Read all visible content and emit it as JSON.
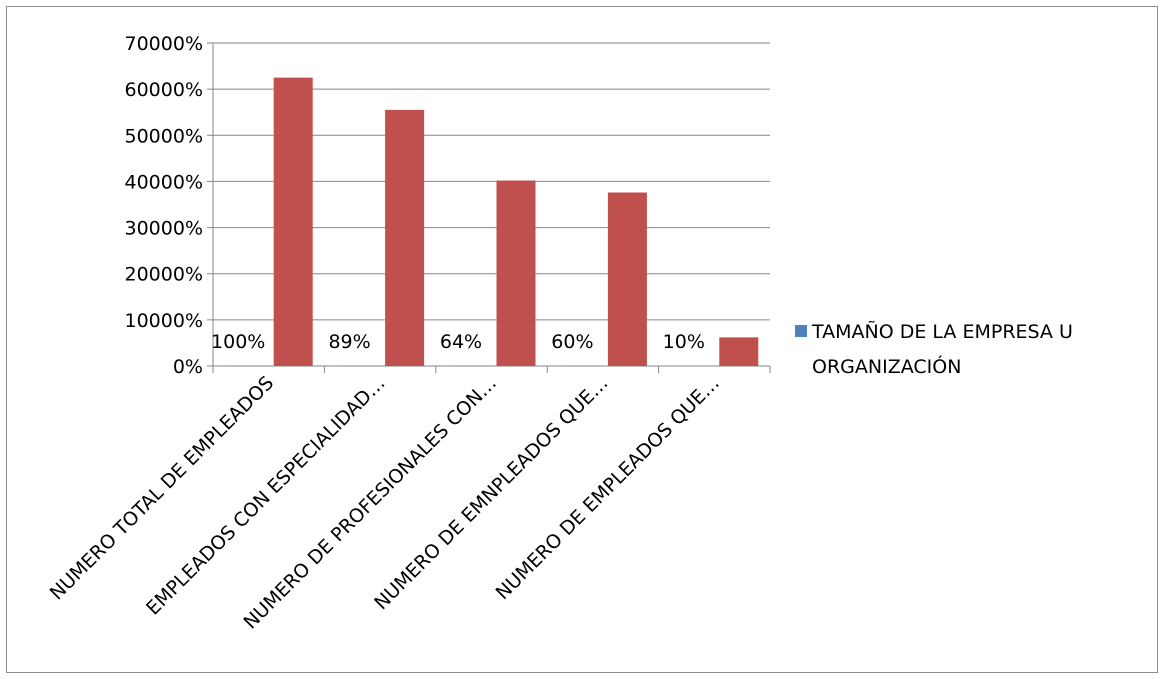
{
  "chart_data": {
    "type": "bar",
    "categories": [
      "NUMERO TOTAL DE EMPLEADOS",
      "EMPLEADOS CON ESPECIALIDAD…",
      "NUMERO DE PROFESIONALES CON…",
      "NUMERO DE EMNPLEADOS QUE…",
      "NUMERO DE EMPLEADOS QUE…"
    ],
    "series": [
      {
        "name": "TAMAÑO DE LA EMPRESA U ORGANIZACIÓN",
        "values": [
          100,
          89,
          64,
          60,
          10
        ],
        "color": "#4f81bd",
        "data_labels": [
          "100%",
          "89%",
          "64%",
          "60%",
          "10%"
        ]
      },
      {
        "values": [
          62500,
          55500,
          40200,
          37600,
          6200
        ],
        "color": "#c0504d"
      }
    ],
    "y_ticks": [
      "0%",
      "10000%",
      "20000%",
      "30000%",
      "40000%",
      "50000%",
      "60000%",
      "70000%"
    ],
    "ylim": [
      0,
      70000
    ],
    "y_unit": "%",
    "grid": true,
    "legend": {
      "position": "right",
      "lines": [
        "TAMAÑO DE LA EMPRESA U",
        "ORGANIZACIÓN"
      ]
    },
    "title": "",
    "xlabel": "",
    "ylabel": ""
  }
}
